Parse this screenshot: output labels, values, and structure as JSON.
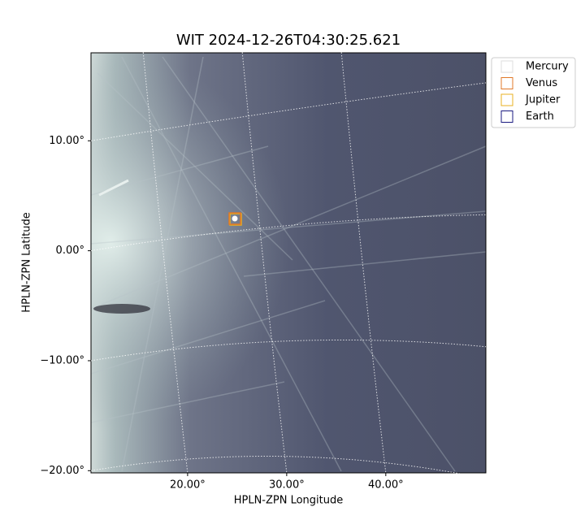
{
  "chart_data": {
    "type": "image",
    "title": "WIT 2024-12-26T04:30:25.621",
    "x_label": "HPLN-ZPN Longitude",
    "y_label": "HPLN-ZPN Latitude",
    "xlim": [
      10.25,
      50.1
    ],
    "ylim": [
      -20.2,
      18
    ],
    "xticks": [
      {
        "value": 20,
        "label": "20.00°"
      },
      {
        "value": 30,
        "label": "30.00°"
      },
      {
        "value": 40,
        "label": "40.00°"
      }
    ],
    "yticks": [
      {
        "value": -20,
        "label": "−20.00°"
      },
      {
        "value": -10,
        "label": "−10.00°"
      },
      {
        "value": 0,
        "label": "0.00°"
      },
      {
        "value": 10,
        "label": "10.00°"
      }
    ],
    "grid": true,
    "legend_position": "upper right",
    "legend": [
      {
        "name": "Mercury",
        "color": "#dddddd"
      },
      {
        "name": "Venus",
        "color": "#e07828"
      },
      {
        "name": "Jupiter",
        "color": "#e8b020"
      },
      {
        "name": "Earth",
        "color": "#1a1a80"
      }
    ]
  }
}
